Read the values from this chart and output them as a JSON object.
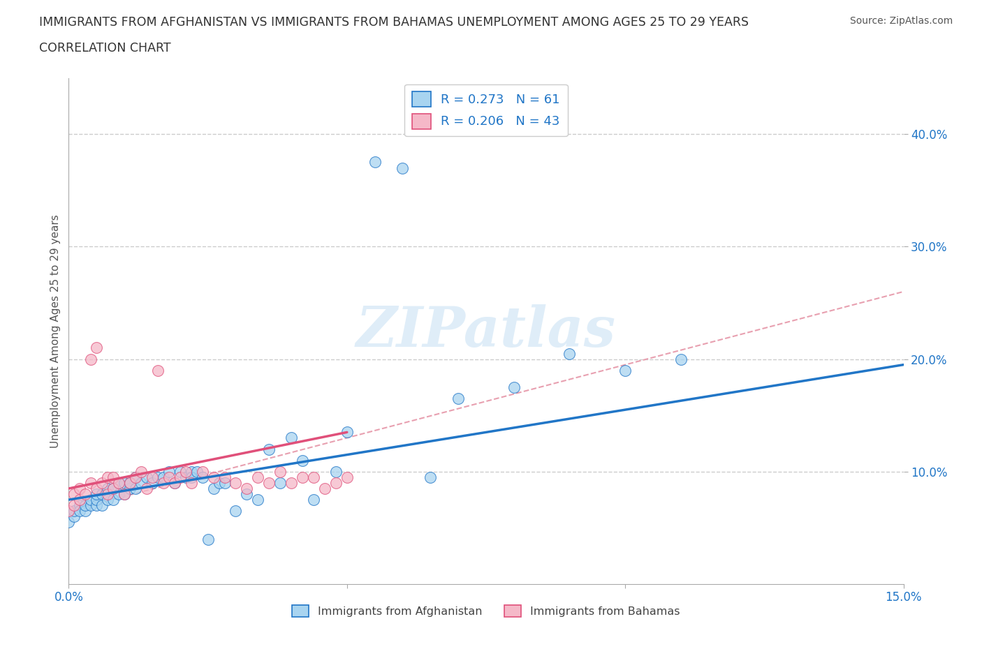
{
  "title_line1": "IMMIGRANTS FROM AFGHANISTAN VS IMMIGRANTS FROM BAHAMAS UNEMPLOYMENT AMONG AGES 25 TO 29 YEARS",
  "title_line2": "CORRELATION CHART",
  "source_text": "Source: ZipAtlas.com",
  "ylabel": "Unemployment Among Ages 25 to 29 years",
  "xlim": [
    0.0,
    0.15
  ],
  "ylim": [
    0.0,
    0.45
  ],
  "legend_r_afg": "0.273",
  "legend_n_afg": 61,
  "legend_r_bah": "0.206",
  "legend_n_bah": 43,
  "color_afg": "#a8d4f0",
  "color_bah": "#f5b8c8",
  "line_color_afg": "#2176c7",
  "line_color_bah": "#e0507a",
  "afg_x": [
    0.0,
    0.001,
    0.001,
    0.002,
    0.002,
    0.003,
    0.003,
    0.004,
    0.004,
    0.005,
    0.005,
    0.005,
    0.006,
    0.006,
    0.007,
    0.007,
    0.008,
    0.008,
    0.009,
    0.009,
    0.01,
    0.01,
    0.011,
    0.011,
    0.012,
    0.012,
    0.013,
    0.014,
    0.015,
    0.016,
    0.017,
    0.018,
    0.019,
    0.02,
    0.021,
    0.022,
    0.022,
    0.023,
    0.024,
    0.025,
    0.026,
    0.027,
    0.028,
    0.03,
    0.032,
    0.034,
    0.036,
    0.038,
    0.04,
    0.042,
    0.044,
    0.048,
    0.05,
    0.055,
    0.06,
    0.065,
    0.07,
    0.08,
    0.09,
    0.1,
    0.11
  ],
  "afg_y": [
    0.055,
    0.06,
    0.065,
    0.07,
    0.065,
    0.065,
    0.07,
    0.07,
    0.075,
    0.07,
    0.075,
    0.08,
    0.07,
    0.08,
    0.075,
    0.085,
    0.075,
    0.085,
    0.08,
    0.09,
    0.08,
    0.09,
    0.085,
    0.09,
    0.085,
    0.095,
    0.09,
    0.095,
    0.09,
    0.095,
    0.095,
    0.1,
    0.09,
    0.1,
    0.095,
    0.1,
    0.095,
    0.1,
    0.095,
    0.04,
    0.085,
    0.09,
    0.09,
    0.065,
    0.08,
    0.075,
    0.12,
    0.09,
    0.13,
    0.11,
    0.075,
    0.1,
    0.135,
    0.375,
    0.37,
    0.095,
    0.165,
    0.175,
    0.205,
    0.19,
    0.2
  ],
  "bah_x": [
    0.0,
    0.001,
    0.001,
    0.002,
    0.002,
    0.003,
    0.004,
    0.004,
    0.005,
    0.005,
    0.006,
    0.007,
    0.007,
    0.008,
    0.008,
    0.009,
    0.01,
    0.011,
    0.012,
    0.013,
    0.014,
    0.015,
    0.016,
    0.017,
    0.018,
    0.019,
    0.02,
    0.021,
    0.022,
    0.024,
    0.026,
    0.028,
    0.03,
    0.032,
    0.034,
    0.036,
    0.038,
    0.04,
    0.042,
    0.044,
    0.046,
    0.048,
    0.05
  ],
  "bah_y": [
    0.065,
    0.07,
    0.08,
    0.075,
    0.085,
    0.08,
    0.09,
    0.2,
    0.085,
    0.21,
    0.09,
    0.08,
    0.095,
    0.085,
    0.095,
    0.09,
    0.08,
    0.09,
    0.095,
    0.1,
    0.085,
    0.095,
    0.19,
    0.09,
    0.095,
    0.09,
    0.095,
    0.1,
    0.09,
    0.1,
    0.095,
    0.095,
    0.09,
    0.085,
    0.095,
    0.09,
    0.1,
    0.09,
    0.095,
    0.095,
    0.085,
    0.09,
    0.095
  ],
  "afg_trendline_x": [
    0.0,
    0.15
  ],
  "afg_trendline_y": [
    0.075,
    0.195
  ],
  "bah_trendline_x": [
    0.0,
    0.05
  ],
  "bah_trendline_y": [
    0.085,
    0.135
  ],
  "dash_trendline_x": [
    0.0,
    0.15
  ],
  "dash_trendline_y": [
    0.065,
    0.26
  ]
}
